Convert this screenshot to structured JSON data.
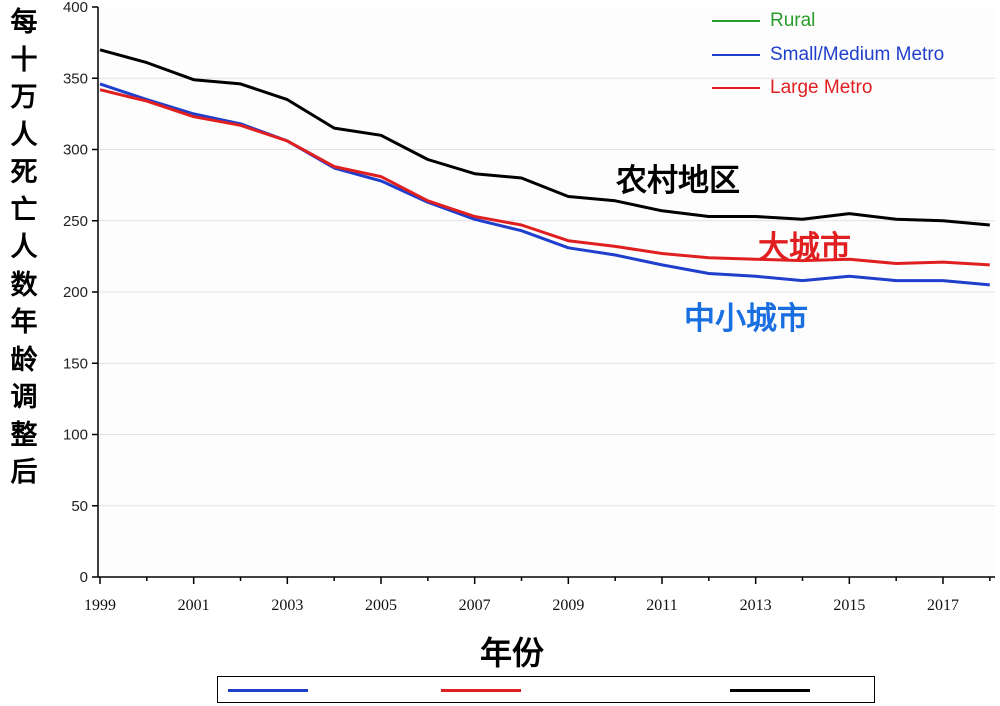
{
  "chart_data": {
    "type": "line",
    "ylabel": "每十万人死亡人数 年龄调整后",
    "xlabel": "年份",
    "ylim": [
      0,
      400
    ],
    "yticks": [
      0,
      50,
      100,
      150,
      200,
      250,
      300,
      350,
      400
    ],
    "xticks": [
      1999,
      2001,
      2003,
      2005,
      2007,
      2009,
      2011,
      2013,
      2015,
      2017
    ],
    "xlim": [
      1999,
      2018
    ],
    "grid": true,
    "legend_position": "top-right",
    "x": [
      1999,
      2000,
      2001,
      2002,
      2003,
      2004,
      2005,
      2006,
      2007,
      2008,
      2009,
      2010,
      2011,
      2012,
      2013,
      2014,
      2015,
      2016,
      2017,
      2018
    ],
    "series": [
      {
        "name": "Rural",
        "legend_color": "#2a9a2a",
        "color": "#000000",
        "label": "农村地区",
        "values": [
          370,
          361,
          349,
          346,
          335,
          315,
          310,
          293,
          283,
          280,
          267,
          264,
          257,
          253,
          253,
          251,
          255,
          251,
          250,
          247
        ]
      },
      {
        "name": "Small/Medium Metro",
        "legend_color": "#1f3fcc",
        "color": "#1f3fcc",
        "label": "中小城市",
        "label_color": "#1a6fe0",
        "values": [
          346,
          335,
          325,
          318,
          306,
          287,
          278,
          263,
          251,
          243,
          231,
          226,
          219,
          213,
          211,
          208,
          211,
          208,
          208,
          205
        ]
      },
      {
        "name": "Large Metro",
        "legend_color": "#e02020",
        "color": "#e02020",
        "label": "大城市",
        "values": [
          342,
          334,
          323,
          317,
          306,
          288,
          281,
          264,
          253,
          247,
          236,
          232,
          227,
          224,
          223,
          222,
          223,
          220,
          221,
          219
        ]
      }
    ]
  }
}
